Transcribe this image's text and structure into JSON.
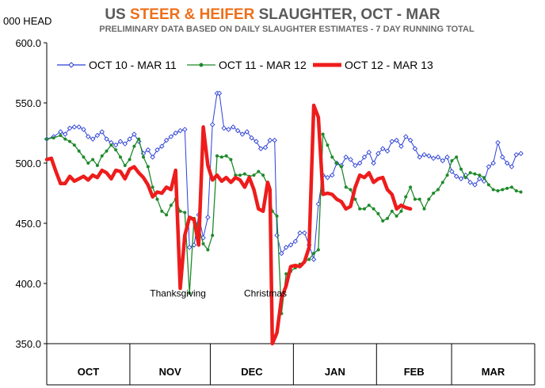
{
  "chart_data": {
    "type": "line",
    "title": {
      "prefix": "US ",
      "highlight": "STEER & HEIFER",
      "suffix": " SLAUGHTER,  OCT - MAR"
    },
    "subtitle": "PRELIMINARY DATA BASED ON DAILY SLAUGHTER ESTIMATES - 7 DAY RUNNING TOTAL",
    "ylabel": "000 HEAD",
    "ylim": [
      350,
      600
    ],
    "yticks": [
      "600.0",
      "550.0",
      "500.0",
      "450.0",
      "400.0",
      "350.0"
    ],
    "ytick_values": [
      600,
      550,
      500,
      450,
      400,
      350
    ],
    "x_months": [
      "OCT",
      "NOV",
      "DEC",
      "JAN",
      "FEB",
      "MAR"
    ],
    "x_days_range": [
      0,
      181
    ],
    "annotations": [
      {
        "text": "Thanksgiving",
        "x": 57,
        "y": 389
      },
      {
        "text": "Christmas",
        "x": 95,
        "y": 389
      }
    ],
    "series": [
      {
        "name": "OCT 10 - MAR 11",
        "color": "#2b3fd6",
        "marker": "open-diamond",
        "points": [
          [
            0,
            520
          ],
          [
            3,
            522
          ],
          [
            6,
            526
          ],
          [
            8,
            524
          ],
          [
            10,
            529
          ],
          [
            12,
            530
          ],
          [
            14,
            530
          ],
          [
            16,
            528
          ],
          [
            18,
            522
          ],
          [
            20,
            520
          ],
          [
            22,
            523
          ],
          [
            24,
            526
          ],
          [
            26,
            520
          ],
          [
            28,
            517
          ],
          [
            30,
            515
          ],
          [
            32,
            518
          ],
          [
            34,
            516
          ],
          [
            36,
            520
          ],
          [
            38,
            524
          ],
          [
            40,
            518
          ],
          [
            42,
            508
          ],
          [
            44,
            511
          ],
          [
            46,
            505
          ],
          [
            48,
            511
          ],
          [
            50,
            514
          ],
          [
            52,
            519
          ],
          [
            54,
            522
          ],
          [
            56,
            525
          ],
          [
            58,
            527
          ],
          [
            60,
            528
          ],
          [
            62,
            430
          ],
          [
            64,
            432
          ],
          [
            66,
            457
          ],
          [
            68,
            438
          ],
          [
            70,
            455
          ],
          [
            72,
            532
          ],
          [
            74,
            558
          ],
          [
            75,
            558
          ],
          [
            77,
            529
          ],
          [
            79,
            528
          ],
          [
            81,
            530
          ],
          [
            83,
            527
          ],
          [
            85,
            524
          ],
          [
            87,
            526
          ],
          [
            89,
            521
          ],
          [
            91,
            518
          ],
          [
            93,
            512
          ],
          [
            95,
            513
          ],
          [
            97,
            519
          ],
          [
            99,
            519
          ],
          [
            100,
            440
          ],
          [
            102,
            425
          ],
          [
            104,
            430
          ],
          [
            106,
            432
          ],
          [
            108,
            435
          ],
          [
            110,
            442
          ],
          [
            112,
            442
          ],
          [
            114,
            432
          ],
          [
            116,
            420
          ],
          [
            118,
            466
          ],
          [
            120,
            490
          ],
          [
            122,
            488
          ],
          [
            124,
            490
          ],
          [
            126,
            500
          ],
          [
            128,
            498
          ],
          [
            130,
            505
          ],
          [
            132,
            503
          ],
          [
            134,
            498
          ],
          [
            136,
            500
          ],
          [
            138,
            505
          ],
          [
            140,
            509
          ],
          [
            142,
            500
          ],
          [
            144,
            508
          ],
          [
            146,
            512
          ],
          [
            148,
            510
          ],
          [
            150,
            518
          ],
          [
            152,
            519
          ],
          [
            154,
            514
          ],
          [
            156,
            522
          ],
          [
            158,
            519
          ],
          [
            160,
            512
          ],
          [
            162,
            505
          ],
          [
            164,
            507
          ],
          [
            166,
            506
          ],
          [
            168,
            504
          ],
          [
            170,
            505
          ],
          [
            172,
            502
          ],
          [
            174,
            505
          ],
          [
            176,
            493
          ],
          [
            178,
            489
          ],
          [
            180,
            487
          ],
          [
            182,
            490
          ],
          [
            184,
            484
          ],
          [
            186,
            482
          ],
          [
            188,
            487
          ],
          [
            190,
            485
          ],
          [
            192,
            497
          ],
          [
            194,
            500
          ],
          [
            196,
            517
          ],
          [
            198,
            505
          ],
          [
            200,
            500
          ],
          [
            202,
            497
          ],
          [
            204,
            507
          ],
          [
            206,
            508
          ]
        ]
      },
      {
        "name": "OCT 11 - MAR 12",
        "color": "#1f8a2b",
        "marker": "filled-dot",
        "points": [
          [
            0,
            520
          ],
          [
            3,
            521
          ],
          [
            6,
            523
          ],
          [
            8,
            520
          ],
          [
            10,
            518
          ],
          [
            12,
            515
          ],
          [
            14,
            510
          ],
          [
            16,
            505
          ],
          [
            18,
            500
          ],
          [
            20,
            503
          ],
          [
            22,
            498
          ],
          [
            24,
            506
          ],
          [
            26,
            510
          ],
          [
            28,
            515
          ],
          [
            30,
            511
          ],
          [
            32,
            505
          ],
          [
            34,
            498
          ],
          [
            36,
            503
          ],
          [
            38,
            514
          ],
          [
            40,
            520
          ],
          [
            42,
            505
          ],
          [
            44,
            497
          ],
          [
            46,
            480
          ],
          [
            48,
            470
          ],
          [
            50,
            460
          ],
          [
            52,
            457
          ],
          [
            54,
            465
          ],
          [
            56,
            470
          ],
          [
            58,
            460
          ],
          [
            60,
            459
          ],
          [
            62,
            392
          ],
          [
            64,
            454
          ],
          [
            66,
            447
          ],
          [
            68,
            433
          ],
          [
            70,
            428
          ],
          [
            72,
            440
          ],
          [
            74,
            506
          ],
          [
            76,
            505
          ],
          [
            78,
            506
          ],
          [
            80,
            503
          ],
          [
            82,
            490
          ],
          [
            84,
            490
          ],
          [
            86,
            491
          ],
          [
            88,
            489
          ],
          [
            90,
            490
          ],
          [
            92,
            493
          ],
          [
            94,
            490
          ],
          [
            96,
            482
          ],
          [
            98,
            460
          ],
          [
            100,
            456
          ],
          [
            102,
            375
          ],
          [
            104,
            408
          ],
          [
            106,
            410
          ],
          [
            108,
            413
          ],
          [
            110,
            416
          ],
          [
            112,
            418
          ],
          [
            114,
            420
          ],
          [
            116,
            425
          ],
          [
            118,
            428
          ],
          [
            120,
            524
          ],
          [
            122,
            515
          ],
          [
            124,
            505
          ],
          [
            126,
            500
          ],
          [
            128,
            497
          ],
          [
            130,
            480
          ],
          [
            132,
            478
          ],
          [
            134,
            470
          ],
          [
            136,
            462
          ],
          [
            138,
            462
          ],
          [
            140,
            465
          ],
          [
            142,
            462
          ],
          [
            144,
            458
          ],
          [
            146,
            452
          ],
          [
            148,
            454
          ],
          [
            150,
            460
          ],
          [
            152,
            456
          ],
          [
            154,
            460
          ],
          [
            156,
            472
          ],
          [
            158,
            480
          ],
          [
            160,
            470
          ],
          [
            162,
            470
          ],
          [
            164,
            462
          ],
          [
            166,
            470
          ],
          [
            168,
            475
          ],
          [
            170,
            478
          ],
          [
            172,
            484
          ],
          [
            174,
            490
          ],
          [
            176,
            502
          ],
          [
            178,
            505
          ],
          [
            180,
            495
          ],
          [
            182,
            488
          ],
          [
            184,
            492
          ],
          [
            186,
            491
          ],
          [
            188,
            490
          ],
          [
            190,
            488
          ],
          [
            192,
            482
          ],
          [
            194,
            478
          ],
          [
            196,
            477
          ],
          [
            198,
            478
          ],
          [
            200,
            479
          ],
          [
            202,
            480
          ],
          [
            204,
            477
          ],
          [
            206,
            476
          ]
        ]
      },
      {
        "name": "OCT 12 - MAR 13",
        "color": "#ee1c1c",
        "marker": "none",
        "points": [
          [
            0,
            503
          ],
          [
            2,
            504
          ],
          [
            4,
            493
          ],
          [
            6,
            483
          ],
          [
            8,
            483
          ],
          [
            10,
            489
          ],
          [
            12,
            485
          ],
          [
            14,
            487
          ],
          [
            16,
            489
          ],
          [
            18,
            486
          ],
          [
            20,
            490
          ],
          [
            22,
            488
          ],
          [
            24,
            494
          ],
          [
            26,
            492
          ],
          [
            28,
            487
          ],
          [
            30,
            494
          ],
          [
            32,
            493
          ],
          [
            34,
            487
          ],
          [
            36,
            495
          ],
          [
            38,
            497
          ],
          [
            40,
            492
          ],
          [
            42,
            488
          ],
          [
            44,
            482
          ],
          [
            46,
            472
          ],
          [
            48,
            476
          ],
          [
            50,
            475
          ],
          [
            52,
            480
          ],
          [
            54,
            478
          ],
          [
            56,
            494
          ],
          [
            58,
            396
          ],
          [
            60,
            440
          ],
          [
            62,
            455
          ],
          [
            64,
            453
          ],
          [
            66,
            432
          ],
          [
            68,
            530
          ],
          [
            70,
            498
          ],
          [
            72,
            486
          ],
          [
            74,
            490
          ],
          [
            76,
            485
          ],
          [
            78,
            488
          ],
          [
            80,
            484
          ],
          [
            82,
            488
          ],
          [
            84,
            486
          ],
          [
            86,
            480
          ],
          [
            88,
            488
          ],
          [
            90,
            478
          ],
          [
            92,
            462
          ],
          [
            94,
            460
          ],
          [
            96,
            484
          ],
          [
            97,
            478
          ],
          [
            98,
            350
          ],
          [
            100,
            359
          ],
          [
            102,
            388
          ],
          [
            104,
            398
          ],
          [
            106,
            414
          ],
          [
            108,
            415
          ],
          [
            110,
            414
          ],
          [
            112,
            418
          ],
          [
            114,
            430
          ],
          [
            116,
            548
          ],
          [
            118,
            538
          ],
          [
            120,
            474
          ],
          [
            122,
            475
          ],
          [
            124,
            474
          ],
          [
            126,
            470
          ],
          [
            128,
            468
          ],
          [
            130,
            462
          ],
          [
            132,
            464
          ],
          [
            134,
            480
          ],
          [
            136,
            490
          ],
          [
            138,
            488
          ],
          [
            140,
            492
          ],
          [
            142,
            484
          ],
          [
            144,
            487
          ],
          [
            146,
            488
          ],
          [
            148,
            478
          ],
          [
            150,
            474
          ],
          [
            152,
            462
          ],
          [
            154,
            465
          ],
          [
            156,
            463
          ],
          [
            158,
            462
          ]
        ]
      }
    ]
  }
}
